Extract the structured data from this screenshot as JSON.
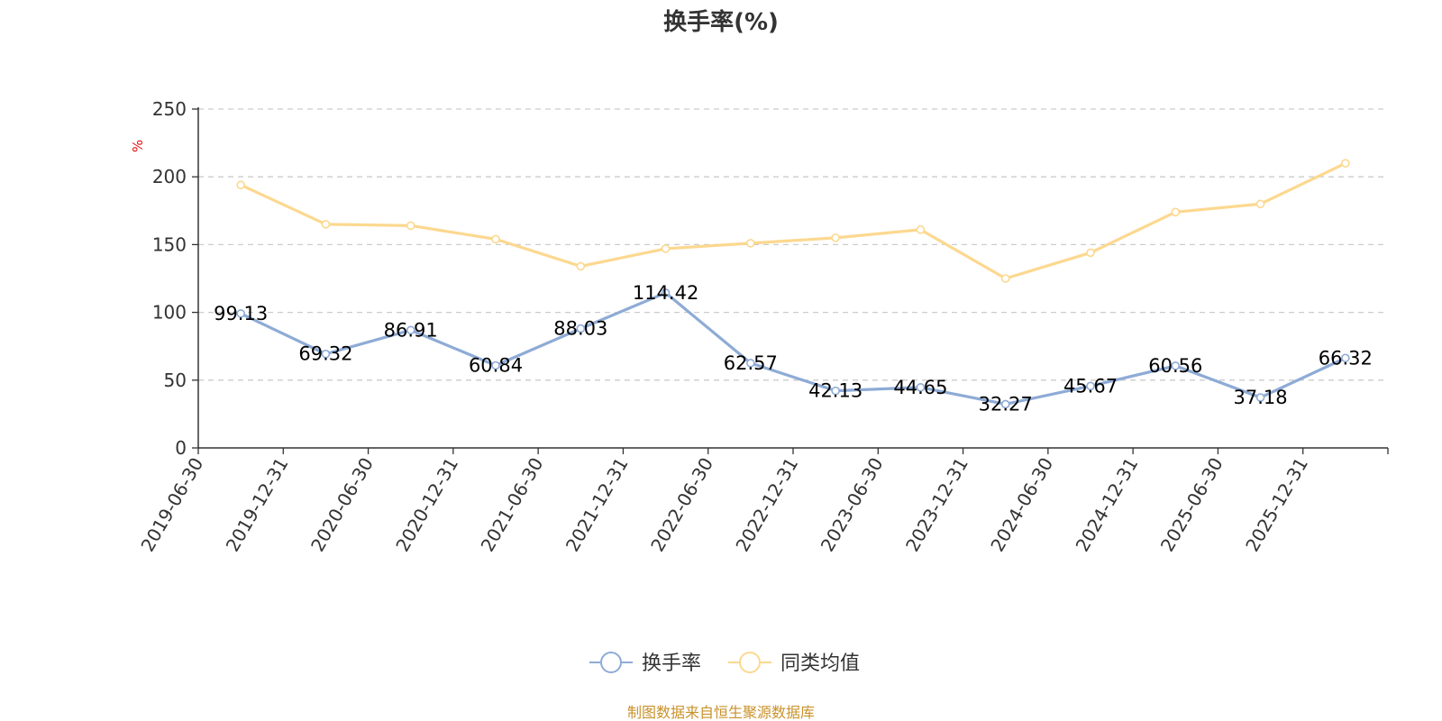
{
  "chart_data": {
    "type": "line",
    "title": "换手率(%)",
    "ylabel": "%",
    "ylim": [
      0,
      250
    ],
    "yticks": [
      0,
      50,
      100,
      150,
      200,
      250
    ],
    "grid": true,
    "legend_position": "bottom-center",
    "categories": [
      "2019-06-30",
      "2019-12-31",
      "2020-06-30",
      "2020-12-31",
      "2021-06-30",
      "2021-12-31",
      "2022-06-30",
      "2022-12-31",
      "2023-06-30",
      "2023-12-31",
      "2024-06-30",
      "2024-12-31",
      "2025-06-30",
      "2025-12-31"
    ],
    "series": [
      {
        "name": "换手率",
        "color": "#8eabd6",
        "show_labels": true,
        "values": [
          99.13,
          69.32,
          86.91,
          60.84,
          88.03,
          114.42,
          62.57,
          42.13,
          44.65,
          32.27,
          45.67,
          60.56,
          37.18,
          66.32
        ]
      },
      {
        "name": "同类均值",
        "color": "#fcd88f",
        "show_labels": false,
        "values": [
          194,
          165,
          164,
          154,
          134,
          147,
          151,
          155,
          161,
          125,
          144,
          174,
          180,
          210
        ]
      }
    ],
    "source_note": "制图数据来自恒生聚源数据库"
  }
}
